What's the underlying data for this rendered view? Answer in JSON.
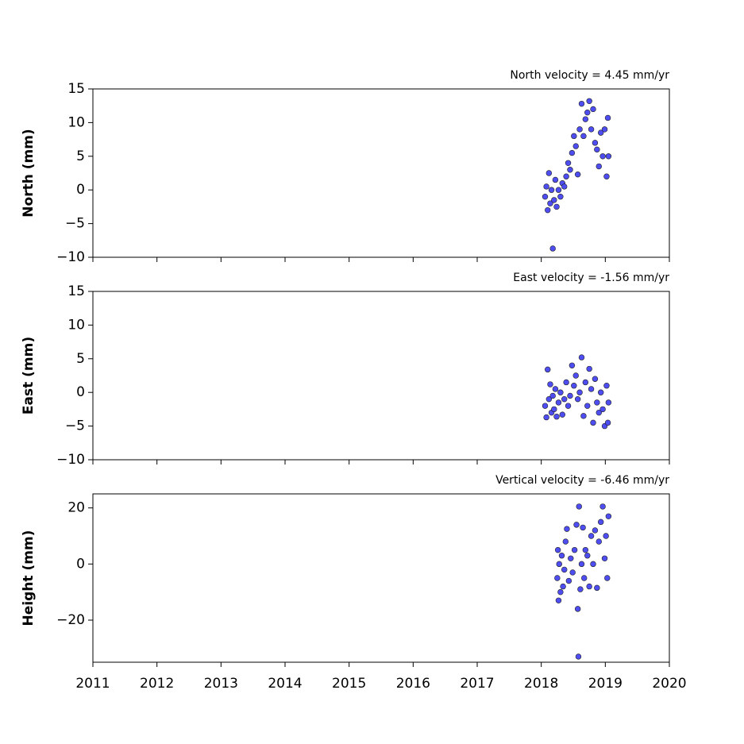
{
  "chart_data": [
    {
      "type": "scatter",
      "title": "North velocity = 4.45 mm/yr",
      "ylabel": "North (mm)",
      "color": "#4d4df2",
      "x": [
        2018.06,
        2018.08,
        2018.1,
        2018.12,
        2018.14,
        2018.16,
        2018.18,
        2018.2,
        2018.22,
        2018.24,
        2018.27,
        2018.3,
        2018.33,
        2018.36,
        2018.39,
        2018.42,
        2018.45,
        2018.48,
        2018.51,
        2018.54,
        2018.57,
        2018.6,
        2018.63,
        2018.66,
        2018.69,
        2018.72,
        2018.75,
        2018.78,
        2018.81,
        2018.84,
        2018.87,
        2018.9,
        2018.93,
        2018.96,
        2018.99,
        2019.02,
        2019.04,
        2019.05
      ],
      "values": [
        -1,
        0.5,
        -3,
        2.5,
        -2,
        0,
        -8.7,
        -1.5,
        1.5,
        -2.5,
        0,
        -1,
        1,
        0.5,
        2,
        4,
        3,
        5.5,
        8,
        6.5,
        2.3,
        9,
        12.8,
        8,
        10.5,
        11.5,
        13.2,
        9,
        12,
        7,
        6,
        3.5,
        8.5,
        5,
        9,
        2,
        10.7,
        5
      ],
      "xlim": [
        2011,
        2020
      ],
      "xticks": [
        2011,
        2012,
        2013,
        2014,
        2015,
        2016,
        2017,
        2018,
        2019,
        2020
      ],
      "ylim": [
        -10,
        15
      ],
      "yticks": [
        {
          "value": -10,
          "label": "−10"
        },
        {
          "value": -5,
          "label": "−5"
        },
        0,
        5,
        10,
        15
      ]
    },
    {
      "type": "scatter",
      "title": "East velocity = -1.56 mm/yr",
      "ylabel": "East (mm)",
      "color": "#4d4df2",
      "x": [
        2018.06,
        2018.08,
        2018.1,
        2018.12,
        2018.14,
        2018.16,
        2018.18,
        2018.2,
        2018.22,
        2018.24,
        2018.27,
        2018.3,
        2018.33,
        2018.36,
        2018.39,
        2018.42,
        2018.45,
        2018.48,
        2018.51,
        2018.54,
        2018.57,
        2018.6,
        2018.63,
        2018.66,
        2018.69,
        2018.72,
        2018.75,
        2018.78,
        2018.81,
        2018.84,
        2018.87,
        2018.9,
        2018.93,
        2018.96,
        2018.99,
        2019.02,
        2019.04,
        2019.05
      ],
      "values": [
        -2,
        -3.7,
        3.4,
        -1,
        1.2,
        -3,
        -0.5,
        -2.5,
        0.5,
        -3.6,
        -1.5,
        0,
        -3.3,
        -1,
        1.5,
        -2,
        -0.5,
        4,
        1,
        2.5,
        -1,
        0,
        5.2,
        -3.5,
        1.5,
        -2,
        3.5,
        0.5,
        -4.5,
        2,
        -1.5,
        -3,
        0,
        -2.5,
        -5,
        1,
        -4.5,
        -1.5
      ],
      "xlim": [
        2011,
        2020
      ],
      "xticks": [
        2011,
        2012,
        2013,
        2014,
        2015,
        2016,
        2017,
        2018,
        2019,
        2020
      ],
      "ylim": [
        -10,
        15
      ],
      "yticks": [
        {
          "value": -10,
          "label": "−10"
        },
        {
          "value": -5,
          "label": "−5"
        },
        0,
        5,
        10,
        15
      ]
    },
    {
      "type": "scatter",
      "title": "Vertical velocity = -6.46 mm/yr",
      "ylabel": "Height (mm)",
      "color": "#4d4df2",
      "x": [
        2018.25,
        2018.26,
        2018.27,
        2018.28,
        2018.3,
        2018.32,
        2018.34,
        2018.36,
        2018.38,
        2018.4,
        2018.43,
        2018.46,
        2018.49,
        2018.52,
        2018.55,
        2018.57,
        2018.58,
        2018.59,
        2018.61,
        2018.63,
        2018.65,
        2018.67,
        2018.69,
        2018.72,
        2018.75,
        2018.78,
        2018.81,
        2018.84,
        2018.87,
        2018.9,
        2018.93,
        2018.96,
        2018.99,
        2019.01,
        2019.03,
        2019.05
      ],
      "values": [
        -5,
        5,
        -13,
        0,
        -10,
        3,
        -8,
        -2,
        8,
        12.5,
        -6,
        2,
        -3,
        5,
        14,
        -16,
        -33,
        20.5,
        -9,
        0,
        13,
        -5,
        5,
        3,
        -8,
        10,
        0,
        12,
        -8.5,
        8,
        15,
        20.5,
        2,
        10,
        -5,
        17
      ],
      "xlim": [
        2011,
        2020
      ],
      "xticks": [
        2011,
        2012,
        2013,
        2014,
        2015,
        2016,
        2017,
        2018,
        2019,
        2020
      ],
      "ylim": [
        -35,
        25
      ],
      "yticks": [
        {
          "value": -20,
          "label": "−20"
        },
        0,
        20
      ]
    }
  ]
}
